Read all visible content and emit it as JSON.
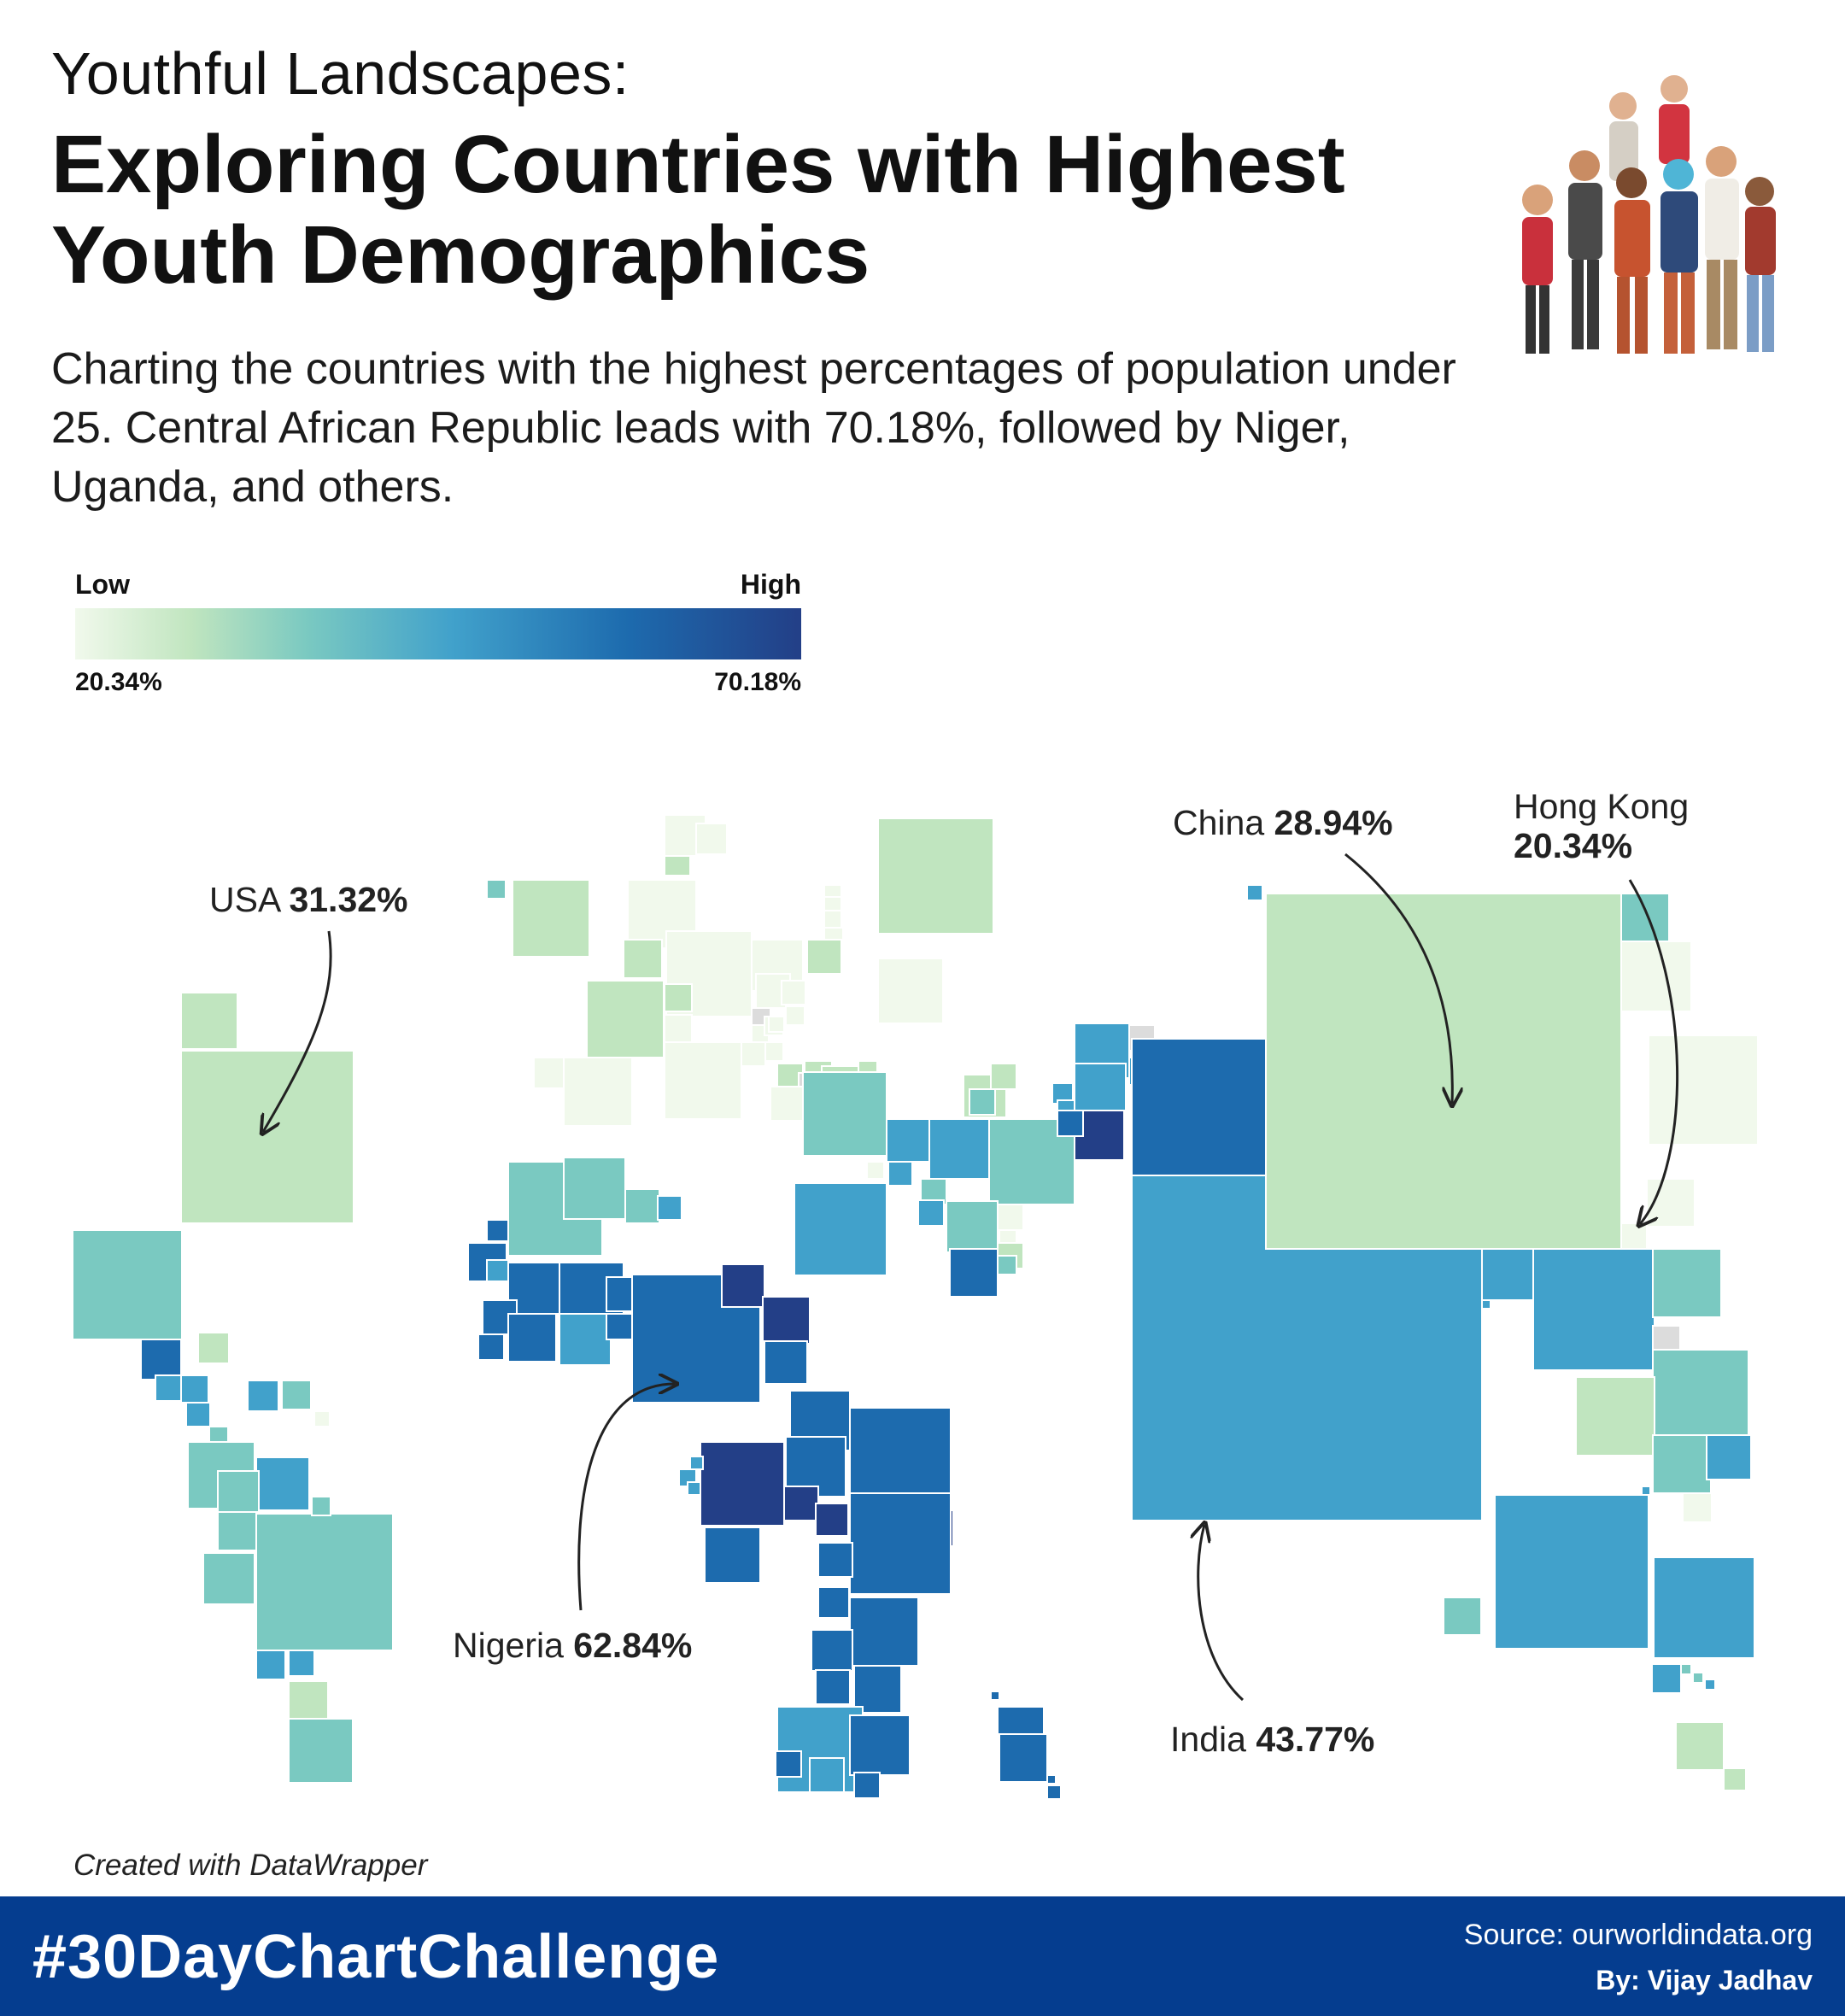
{
  "header": {
    "kicker": "Youthful Landscapes:",
    "title_line1": "Exploring Countries with Highest",
    "title_line2": "Youth Demographics",
    "subtitle": "Charting the countries with the highest percentages of population under 25. Central African Republic leads with 70.18%, followed by Niger, Uganda, and others."
  },
  "legend": {
    "low_label": "Low",
    "high_label": "High",
    "min_value": "20.34%",
    "max_value": "70.18%",
    "colors": [
      "#f1f9ec",
      "#c0e5bf",
      "#7ac9c1",
      "#41a1cb",
      "#1d6bae",
      "#233f87"
    ]
  },
  "map_data": {
    "type": "square cartogram",
    "metric": "share of population under 25",
    "annotations": [
      {
        "country": "USA",
        "value": "31.32%"
      },
      {
        "country": "China",
        "value": "28.94%"
      },
      {
        "country": "Hong Kong",
        "value": "20.34%"
      },
      {
        "country": "Nigeria",
        "value": "62.84%"
      },
      {
        "country": "India",
        "value": "43.77%"
      }
    ]
  },
  "footer": {
    "credit": "Created with DataWrapper",
    "hashtag": "#30DayChartChallenge",
    "source": "Source: ourworldindata.org",
    "author": "By: Vijay Jadhav"
  }
}
